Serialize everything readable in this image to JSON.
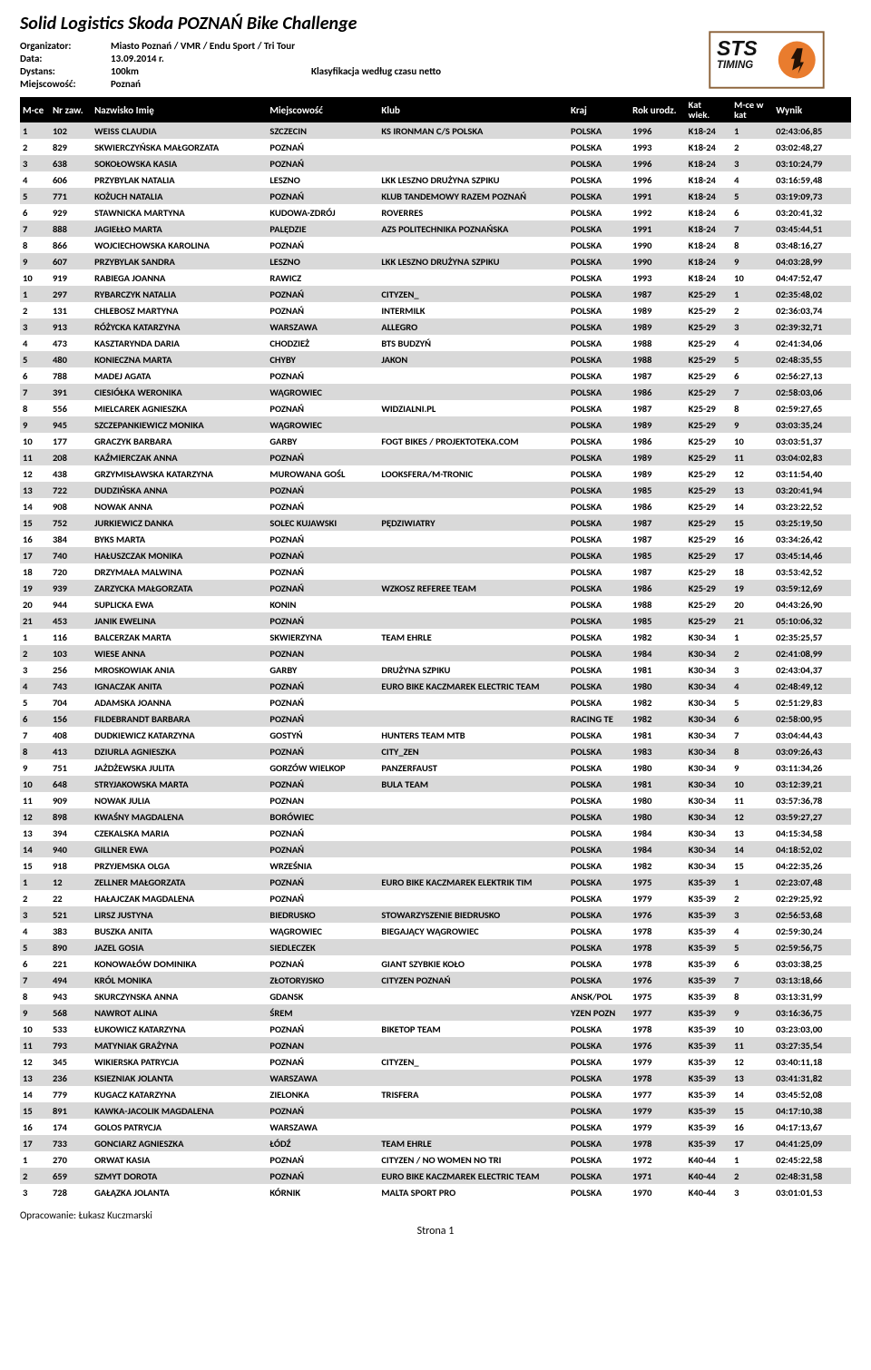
{
  "title": "Solid Logistics Skoda POZNAŃ Bike Challenge",
  "meta": {
    "organizer_label": "Organizator:",
    "organizer": "Miasto Poznań / VMR / Endu Sport / Tri Tour",
    "date_label": "Data:",
    "date": "13.09.2014 r.",
    "distance_label": "Dystans:",
    "distance": "100km",
    "classification": "Klasyfikacja według czasu netto",
    "place_label": "Miejscowość:",
    "place": "Poznań"
  },
  "columns": {
    "mce": "M-ce",
    "nr": "Nr zaw.",
    "name": "Nazwisko Imię",
    "miejscowosc": "Miejscowość",
    "klub": "Klub",
    "kraj": "Kraj",
    "rok": "Rok urodz.",
    "kat_line1": "Kat",
    "kat_line2": "wiek.",
    "mcek_line1": "M-ce w",
    "mcek_line2": "kat",
    "wynik": "Wynik"
  },
  "rows": [
    {
      "alt": 1,
      "mce": "1",
      "nr": "102",
      "name": "WEISS CLAUDIA",
      "miej": "SZCZECIN",
      "klub": "KS IRONMAN C/S POLSKA",
      "kraj": "POLSKA",
      "rok": "1996",
      "kat": "K18-24",
      "mcek": "1",
      "wynik": "02:43:06,85"
    },
    {
      "alt": 0,
      "mce": "2",
      "nr": "829",
      "name": "SKWIERCZYŃSKA MAŁGORZATA",
      "miej": "POZNAŃ",
      "klub": "",
      "kraj": "POLSKA",
      "rok": "1993",
      "kat": "K18-24",
      "mcek": "2",
      "wynik": "03:02:48,27"
    },
    {
      "alt": 1,
      "mce": "3",
      "nr": "638",
      "name": "SOKOŁOWSKA KASIA",
      "miej": "POZNAŃ",
      "klub": "",
      "kraj": "POLSKA",
      "rok": "1996",
      "kat": "K18-24",
      "mcek": "3",
      "wynik": "03:10:24,79"
    },
    {
      "alt": 0,
      "mce": "4",
      "nr": "606",
      "name": "PRZYBYLAK NATALIA",
      "miej": "LESZNO",
      "klub": "LKK LESZNO DRUŻYNA SZPIKU",
      "kraj": "POLSKA",
      "rok": "1996",
      "kat": "K18-24",
      "mcek": "4",
      "wynik": "03:16:59,48"
    },
    {
      "alt": 1,
      "mce": "5",
      "nr": "771",
      "name": "KOŻUCH NATALIA",
      "miej": "POZNAŃ",
      "klub": "KLUB TANDEMOWY RAZEM POZNAŃ",
      "kraj": "POLSKA",
      "rok": "1991",
      "kat": "K18-24",
      "mcek": "5",
      "wynik": "03:19:09,73"
    },
    {
      "alt": 0,
      "mce": "6",
      "nr": "929",
      "name": "STAWNICKA MARTYNA",
      "miej": "KUDOWA-ZDRÓJ",
      "klub": "ROVERRES",
      "kraj": "POLSKA",
      "rok": "1992",
      "kat": "K18-24",
      "mcek": "6",
      "wynik": "03:20:41,32"
    },
    {
      "alt": 1,
      "mce": "7",
      "nr": "888",
      "name": "JAGIEŁŁO MARTA",
      "miej": "PALĘDZIE",
      "klub": "AZS POLITECHNIKA POZNAŃSKA",
      "kraj": "POLSKA",
      "rok": "1991",
      "kat": "K18-24",
      "mcek": "7",
      "wynik": "03:45:44,51"
    },
    {
      "alt": 0,
      "mce": "8",
      "nr": "866",
      "name": "WOJCIECHOWSKA KAROLINA",
      "miej": "POZNAŃ",
      "klub": "",
      "kraj": "POLSKA",
      "rok": "1990",
      "kat": "K18-24",
      "mcek": "8",
      "wynik": "03:48:16,27"
    },
    {
      "alt": 1,
      "mce": "9",
      "nr": "607",
      "name": "PRZYBYLAK SANDRA",
      "miej": "LESZNO",
      "klub": "LKK LESZNO DRUŻYNA SZPIKU",
      "kraj": "POLSKA",
      "rok": "1990",
      "kat": "K18-24",
      "mcek": "9",
      "wynik": "04:03:28,99"
    },
    {
      "alt": 0,
      "mce": "10",
      "nr": "919",
      "name": "RABIEGA JOANNA",
      "miej": "RAWICZ",
      "klub": "",
      "kraj": "POLSKA",
      "rok": "1993",
      "kat": "K18-24",
      "mcek": "10",
      "wynik": "04:47:52,47"
    },
    {
      "alt": 1,
      "mce": "1",
      "nr": "297",
      "name": "RYBARCZYK NATALIA",
      "miej": "POZNAŃ",
      "klub": "CITYZEN_",
      "kraj": "POLSKA",
      "rok": "1987",
      "kat": "K25-29",
      "mcek": "1",
      "wynik": "02:35:48,02"
    },
    {
      "alt": 0,
      "mce": "2",
      "nr": "131",
      "name": "CHLEBOSZ MARTYNA",
      "miej": "POZNAŃ",
      "klub": "INTERMILK",
      "kraj": "POLSKA",
      "rok": "1989",
      "kat": "K25-29",
      "mcek": "2",
      "wynik": "02:36:03,74"
    },
    {
      "alt": 1,
      "mce": "3",
      "nr": "913",
      "name": "RÓŻYCKA KATARZYNA",
      "miej": "WARSZAWA",
      "klub": "ALLEGRO",
      "kraj": "POLSKA",
      "rok": "1989",
      "kat": "K25-29",
      "mcek": "3",
      "wynik": "02:39:32,71"
    },
    {
      "alt": 0,
      "mce": "4",
      "nr": "473",
      "name": "KASZTARYNDA DARIA",
      "miej": "CHODZIEŻ",
      "klub": "BTS BUDZYŃ",
      "kraj": "POLSKA",
      "rok": "1988",
      "kat": "K25-29",
      "mcek": "4",
      "wynik": "02:41:34,06"
    },
    {
      "alt": 1,
      "mce": "5",
      "nr": "480",
      "name": "KONIECZNA MARTA",
      "miej": "CHYBY",
      "klub": "JAKON",
      "kraj": "POLSKA",
      "rok": "1988",
      "kat": "K25-29",
      "mcek": "5",
      "wynik": "02:48:35,55"
    },
    {
      "alt": 0,
      "mce": "6",
      "nr": "788",
      "name": "MADEJ AGATA",
      "miej": "POZNAŃ",
      "klub": "",
      "kraj": "POLSKA",
      "rok": "1987",
      "kat": "K25-29",
      "mcek": "6",
      "wynik": "02:56:27,13"
    },
    {
      "alt": 1,
      "mce": "7",
      "nr": "391",
      "name": "CIESIÓŁKA WERONIKA",
      "miej": "WĄGROWIEC",
      "klub": "",
      "kraj": "POLSKA",
      "rok": "1986",
      "kat": "K25-29",
      "mcek": "7",
      "wynik": "02:58:03,06"
    },
    {
      "alt": 0,
      "mce": "8",
      "nr": "556",
      "name": "MIELCAREK AGNIESZKA",
      "miej": "POZNAŃ",
      "klub": "WIDZIALNI.PL",
      "kraj": "POLSKA",
      "rok": "1987",
      "kat": "K25-29",
      "mcek": "8",
      "wynik": "02:59:27,65"
    },
    {
      "alt": 1,
      "mce": "9",
      "nr": "945",
      "name": "SZCZEPANKIEWICZ MONIKA",
      "miej": "WĄGROWIEC",
      "klub": "",
      "kraj": "POLSKA",
      "rok": "1989",
      "kat": "K25-29",
      "mcek": "9",
      "wynik": "03:03:35,24"
    },
    {
      "alt": 0,
      "mce": "10",
      "nr": "177",
      "name": "GRACZYK BARBARA",
      "miej": "GARBY",
      "klub": "FOGT BIKES / PROJEKTOTEKA.COM",
      "kraj": "POLSKA",
      "rok": "1986",
      "kat": "K25-29",
      "mcek": "10",
      "wynik": "03:03:51,37"
    },
    {
      "alt": 1,
      "mce": "11",
      "nr": "208",
      "name": "KAŹMIERCZAK ANNA",
      "miej": "POZNAŃ",
      "klub": "",
      "kraj": "POLSKA",
      "rok": "1989",
      "kat": "K25-29",
      "mcek": "11",
      "wynik": "03:04:02,83"
    },
    {
      "alt": 0,
      "mce": "12",
      "nr": "438",
      "name": "GRZYMISŁAWSKA KATARZYNA",
      "miej": "MUROWANA GOŚL",
      "klub": "LOOKSFERA/M-TRONIC",
      "kraj": "POLSKA",
      "rok": "1989",
      "kat": "K25-29",
      "mcek": "12",
      "wynik": "03:11:54,40"
    },
    {
      "alt": 1,
      "mce": "13",
      "nr": "722",
      "name": "DUDZIŃSKA ANNA",
      "miej": "POZNAŃ",
      "klub": "",
      "kraj": "POLSKA",
      "rok": "1985",
      "kat": "K25-29",
      "mcek": "13",
      "wynik": "03:20:41,94"
    },
    {
      "alt": 0,
      "mce": "14",
      "nr": "908",
      "name": "NOWAK ANNA",
      "miej": "POZNAŃ",
      "klub": "",
      "kraj": "POLSKA",
      "rok": "1986",
      "kat": "K25-29",
      "mcek": "14",
      "wynik": "03:23:22,52"
    },
    {
      "alt": 1,
      "mce": "15",
      "nr": "752",
      "name": "JURKIEWICZ DANKA",
      "miej": "SOLEC KUJAWSKI",
      "klub": "PĘDZIWIATRY",
      "kraj": "POLSKA",
      "rok": "1987",
      "kat": "K25-29",
      "mcek": "15",
      "wynik": "03:25:19,50"
    },
    {
      "alt": 0,
      "mce": "16",
      "nr": "384",
      "name": "BYKS MARTA",
      "miej": "POZNAŃ",
      "klub": "",
      "kraj": "POLSKA",
      "rok": "1987",
      "kat": "K25-29",
      "mcek": "16",
      "wynik": "03:34:26,42"
    },
    {
      "alt": 1,
      "mce": "17",
      "nr": "740",
      "name": "HAŁUSZCZAK MONIKA",
      "miej": "POZNAŃ",
      "klub": "",
      "kraj": "POLSKA",
      "rok": "1985",
      "kat": "K25-29",
      "mcek": "17",
      "wynik": "03:45:14,46"
    },
    {
      "alt": 0,
      "mce": "18",
      "nr": "720",
      "name": "DRZYMAŁA MALWINA",
      "miej": "POZNAŃ",
      "klub": "",
      "kraj": "POLSKA",
      "rok": "1987",
      "kat": "K25-29",
      "mcek": "18",
      "wynik": "03:53:42,52"
    },
    {
      "alt": 1,
      "mce": "19",
      "nr": "939",
      "name": "ZARZYCKA MAŁGORZATA",
      "miej": "POZNAŃ",
      "klub": "WZKOSZ REFEREE TEAM",
      "kraj": "POLSKA",
      "rok": "1986",
      "kat": "K25-29",
      "mcek": "19",
      "wynik": "03:59:12,69"
    },
    {
      "alt": 0,
      "mce": "20",
      "nr": "944",
      "name": "SUPLICKA EWA",
      "miej": "KONIN",
      "klub": "",
      "kraj": "POLSKA",
      "rok": "1988",
      "kat": "K25-29",
      "mcek": "20",
      "wynik": "04:43:26,90"
    },
    {
      "alt": 1,
      "mce": "21",
      "nr": "453",
      "name": "JANIK EWELINA",
      "miej": "POZNAŃ",
      "klub": "",
      "kraj": "POLSKA",
      "rok": "1985",
      "kat": "K25-29",
      "mcek": "21",
      "wynik": "05:10:06,32"
    },
    {
      "alt": 0,
      "mce": "1",
      "nr": "116",
      "name": "BALCERZAK MARTA",
      "miej": "SKWIERZYNA",
      "klub": "TEAM EHRLE",
      "kraj": "POLSKA",
      "rok": "1982",
      "kat": "K30-34",
      "mcek": "1",
      "wynik": "02:35:25,57"
    },
    {
      "alt": 1,
      "mce": "2",
      "nr": "103",
      "name": "WIESE ANNA",
      "miej": "POZNAN",
      "klub": "",
      "kraj": "POLSKA",
      "rok": "1984",
      "kat": "K30-34",
      "mcek": "2",
      "wynik": "02:41:08,99"
    },
    {
      "alt": 0,
      "mce": "3",
      "nr": "256",
      "name": "MROSKOWIAK ANIA",
      "miej": "GARBY",
      "klub": "DRUŻYNA SZPIKU",
      "kraj": "POLSKA",
      "rok": "1981",
      "kat": "K30-34",
      "mcek": "3",
      "wynik": "02:43:04,37"
    },
    {
      "alt": 1,
      "mce": "4",
      "nr": "743",
      "name": "IGNACZAK ANITA",
      "miej": "POZNAŃ",
      "klub": "EURO BIKE KACZMAREK ELECTRIC TEAM",
      "kraj": "POLSKA",
      "rok": "1980",
      "kat": "K30-34",
      "mcek": "4",
      "wynik": "02:48:49,12"
    },
    {
      "alt": 0,
      "mce": "5",
      "nr": "704",
      "name": "ADAMSKA JOANNA",
      "miej": "POZNAŃ",
      "klub": "",
      "kraj": "POLSKA",
      "rok": "1982",
      "kat": "K30-34",
      "mcek": "5",
      "wynik": "02:51:29,83"
    },
    {
      "alt": 1,
      "mce": "6",
      "nr": "156",
      "name": "FILDEBRANDT BARBARA",
      "miej": " POZNAŃ",
      "klub": "",
      "kraj": "RACING TE",
      "rok": "1982",
      "kat": "K30-34",
      "mcek": "6",
      "wynik": "02:58:00,95"
    },
    {
      "alt": 0,
      "mce": "7",
      "nr": "408",
      "name": "DUDKIEWICZ KATARZYNA",
      "miej": "GOSTYŃ",
      "klub": "HUNTERS TEAM MTB",
      "kraj": "POLSKA",
      "rok": "1981",
      "kat": "K30-34",
      "mcek": "7",
      "wynik": "03:04:44,43"
    },
    {
      "alt": 1,
      "mce": "8",
      "nr": "413",
      "name": "DZIURLA AGNIESZKA",
      "miej": "POZNAŃ",
      "klub": "CITY_ZEN",
      "kraj": "POLSKA",
      "rok": "1983",
      "kat": "K30-34",
      "mcek": "8",
      "wynik": "03:09:26,43"
    },
    {
      "alt": 0,
      "mce": "9",
      "nr": "751",
      "name": "JAŻDŻEWSKA JULITA",
      "miej": "GORZÓW WIELKOP",
      "klub": "PANZERFAUST",
      "kraj": "POLSKA",
      "rok": "1980",
      "kat": "K30-34",
      "mcek": "9",
      "wynik": "03:11:34,26"
    },
    {
      "alt": 1,
      "mce": "10",
      "nr": "648",
      "name": "STRYJAKOWSKA MARTA",
      "miej": "POZNAŃ",
      "klub": "BULA TEAM",
      "kraj": "POLSKA",
      "rok": "1981",
      "kat": "K30-34",
      "mcek": "10",
      "wynik": "03:12:39,21"
    },
    {
      "alt": 0,
      "mce": "11",
      "nr": "909",
      "name": "NOWAK JULIA",
      "miej": "POZNAN",
      "klub": "",
      "kraj": "POLSKA",
      "rok": "1980",
      "kat": "K30-34",
      "mcek": "11",
      "wynik": "03:57:36,78"
    },
    {
      "alt": 1,
      "mce": "12",
      "nr": "898",
      "name": "KWAŚNY MAGDALENA",
      "miej": "BORÓWIEC",
      "klub": "",
      "kraj": "POLSKA",
      "rok": "1980",
      "kat": "K30-34",
      "mcek": "12",
      "wynik": "03:59:27,27"
    },
    {
      "alt": 0,
      "mce": "13",
      "nr": "394",
      "name": "CZEKALSKA MARIA",
      "miej": "POZNAŃ",
      "klub": "",
      "kraj": "POLSKA",
      "rok": "1984",
      "kat": "K30-34",
      "mcek": "13",
      "wynik": "04:15:34,58"
    },
    {
      "alt": 1,
      "mce": "14",
      "nr": "940",
      "name": "GILLNER EWA",
      "miej": "POZNAŃ",
      "klub": "",
      "kraj": "POLSKA",
      "rok": "1984",
      "kat": "K30-34",
      "mcek": "14",
      "wynik": "04:18:52,02"
    },
    {
      "alt": 0,
      "mce": "15",
      "nr": "918",
      "name": "PRZYJEMSKA OLGA",
      "miej": "WRZEŚNIA",
      "klub": "",
      "kraj": "POLSKA",
      "rok": "1982",
      "kat": "K30-34",
      "mcek": "15",
      "wynik": "04:22:35,26"
    },
    {
      "alt": 1,
      "mce": "1",
      "nr": "12",
      "name": "ZELLNER MAŁGORZATA",
      "miej": "POZNAŃ",
      "klub": "EURO BIKE KACZMAREK ELEKTRIK TIM",
      "kraj": "POLSKA",
      "rok": "1975",
      "kat": "K35-39",
      "mcek": "1",
      "wynik": "02:23:07,48"
    },
    {
      "alt": 0,
      "mce": "2",
      "nr": "22",
      "name": "HAŁAJCZAK MAGDALENA",
      "miej": "POZNAŃ",
      "klub": "",
      "kraj": "POLSKA",
      "rok": "1979",
      "kat": "K35-39",
      "mcek": "2",
      "wynik": "02:29:25,92"
    },
    {
      "alt": 1,
      "mce": "3",
      "nr": "521",
      "name": "LIRSZ JUSTYNA",
      "miej": "BIEDRUSKO",
      "klub": "STOWARZYSZENIE BIEDRUSKO",
      "kraj": "POLSKA",
      "rok": "1976",
      "kat": "K35-39",
      "mcek": "3",
      "wynik": "02:56:53,68"
    },
    {
      "alt": 0,
      "mce": "4",
      "nr": "383",
      "name": "BUSZKA ANITA",
      "miej": "WĄGROWIEC",
      "klub": "BIEGAJĄCY WĄGROWIEC",
      "kraj": "POLSKA",
      "rok": "1978",
      "kat": "K35-39",
      "mcek": "4",
      "wynik": "02:59:30,24"
    },
    {
      "alt": 1,
      "mce": "5",
      "nr": "890",
      "name": "JAZEL GOSIA",
      "miej": "SIEDLECZEK",
      "klub": "",
      "kraj": "POLSKA",
      "rok": "1978",
      "kat": "K35-39",
      "mcek": "5",
      "wynik": "02:59:56,75"
    },
    {
      "alt": 0,
      "mce": "6",
      "nr": "221",
      "name": "KONOWAŁÓW DOMINIKA",
      "miej": "POZNAŃ",
      "klub": "GIANT SZYBKIE KOŁO",
      "kraj": "POLSKA",
      "rok": "1978",
      "kat": "K35-39",
      "mcek": "6",
      "wynik": "03:03:38,25"
    },
    {
      "alt": 1,
      "mce": "7",
      "nr": "494",
      "name": "KRÓL MONIKA",
      "miej": "ZŁOTORYJSKO",
      "klub": "CITYZEN POZNAŃ",
      "kraj": "POLSKA",
      "rok": "1976",
      "kat": "K35-39",
      "mcek": "7",
      "wynik": "03:13:18,66"
    },
    {
      "alt": 0,
      "mce": "8",
      "nr": "943",
      "name": "SKURCZYNSKA ANNA",
      "miej": "GDANSK",
      "klub": "",
      "kraj": "ANSK/POL",
      "rok": "1975",
      "kat": "K35-39",
      "mcek": "8",
      "wynik": "03:13:31,99"
    },
    {
      "alt": 1,
      "mce": "9",
      "nr": "568",
      "name": "NAWROT ALINA",
      "miej": "ŚREM",
      "klub": "",
      "kraj": "YZEN POZN",
      "rok": "1977",
      "kat": "K35-39",
      "mcek": "9",
      "wynik": "03:16:36,75"
    },
    {
      "alt": 0,
      "mce": "10",
      "nr": "533",
      "name": "ŁUKOWICZ KATARZYNA",
      "miej": "POZNAŃ",
      "klub": "BIKETOP TEAM",
      "kraj": "POLSKA",
      "rok": "1978",
      "kat": "K35-39",
      "mcek": "10",
      "wynik": "03:23:03,00"
    },
    {
      "alt": 1,
      "mce": "11",
      "nr": "793",
      "name": "MATYNIAK GRAŻYNA",
      "miej": "POZNAN",
      "klub": "",
      "kraj": "POLSKA",
      "rok": "1976",
      "kat": "K35-39",
      "mcek": "11",
      "wynik": "03:27:35,54"
    },
    {
      "alt": 0,
      "mce": "12",
      "nr": "345",
      "name": "WIKIERSKA PATRYCJA",
      "miej": "POZNAŃ",
      "klub": "CITYZEN_",
      "kraj": "POLSKA",
      "rok": "1979",
      "kat": "K35-39",
      "mcek": "12",
      "wynik": "03:40:11,18"
    },
    {
      "alt": 1,
      "mce": "13",
      "nr": "236",
      "name": "KSIEZNIAK JOLANTA",
      "miej": "WARSZAWA",
      "klub": "",
      "kraj": "POLSKA",
      "rok": "1978",
      "kat": "K35-39",
      "mcek": "13",
      "wynik": "03:41:31,82"
    },
    {
      "alt": 0,
      "mce": "14",
      "nr": "779",
      "name": "KUGACZ KATARZYNA",
      "miej": "ZIELONKA",
      "klub": "TRISFERA",
      "kraj": "POLSKA",
      "rok": "1977",
      "kat": "K35-39",
      "mcek": "14",
      "wynik": "03:45:52,08"
    },
    {
      "alt": 1,
      "mce": "15",
      "nr": "891",
      "name": "KAWKA-JACOLIK MAGDALENA",
      "miej": "POZNAŃ",
      "klub": "",
      "kraj": "POLSKA",
      "rok": "1979",
      "kat": "K35-39",
      "mcek": "15",
      "wynik": "04:17:10,38"
    },
    {
      "alt": 0,
      "mce": "16",
      "nr": "174",
      "name": "GOLOS PATRYCJA",
      "miej": "WARSZAWA",
      "klub": "",
      "kraj": "POLSKA",
      "rok": "1979",
      "kat": "K35-39",
      "mcek": "16",
      "wynik": "04:17:13,67"
    },
    {
      "alt": 1,
      "mce": "17",
      "nr": "733",
      "name": "GONCIARZ AGNIESZKA",
      "miej": "ŁÓDŹ",
      "klub": "TEAM EHRLE",
      "kraj": "POLSKA",
      "rok": "1978",
      "kat": "K35-39",
      "mcek": "17",
      "wynik": "04:41:25,09"
    },
    {
      "alt": 0,
      "mce": "1",
      "nr": "270",
      "name": "ORWAT KASIA",
      "miej": "POZNAŃ",
      "klub": "CITYZEN / NO WOMEN NO TRI",
      "kraj": "POLSKA",
      "rok": "1972",
      "kat": "K40-44",
      "mcek": "1",
      "wynik": "02:45:22,58"
    },
    {
      "alt": 1,
      "mce": "2",
      "nr": "659",
      "name": "SZMYT DOROTA",
      "miej": "POZNAŃ",
      "klub": "EURO BIKE KACZMAREK ELECTRIC TEAM",
      "kraj": "POLSKA",
      "rok": "1971",
      "kat": "K40-44",
      "mcek": "2",
      "wynik": "02:48:31,58"
    },
    {
      "alt": 0,
      "mce": "3",
      "nr": "728",
      "name": "GAŁĄZKA JOLANTA",
      "miej": "KÓRNIK",
      "klub": "MALTA SPORT PRO",
      "kraj": "POLSKA",
      "rok": "1970",
      "kat": "K40-44",
      "mcek": "3",
      "wynik": "03:01:01,53"
    }
  ],
  "footer": {
    "opracowanie": "Opracowanie: Łukasz Kuczmarski",
    "page": "Strona 1"
  },
  "logo": {
    "text1": "STS",
    "text2": "TIMING",
    "bg_rect": "#ffffff",
    "stroke": "#8c6239",
    "text_color": "#111111",
    "accent": "#e97c2e"
  }
}
